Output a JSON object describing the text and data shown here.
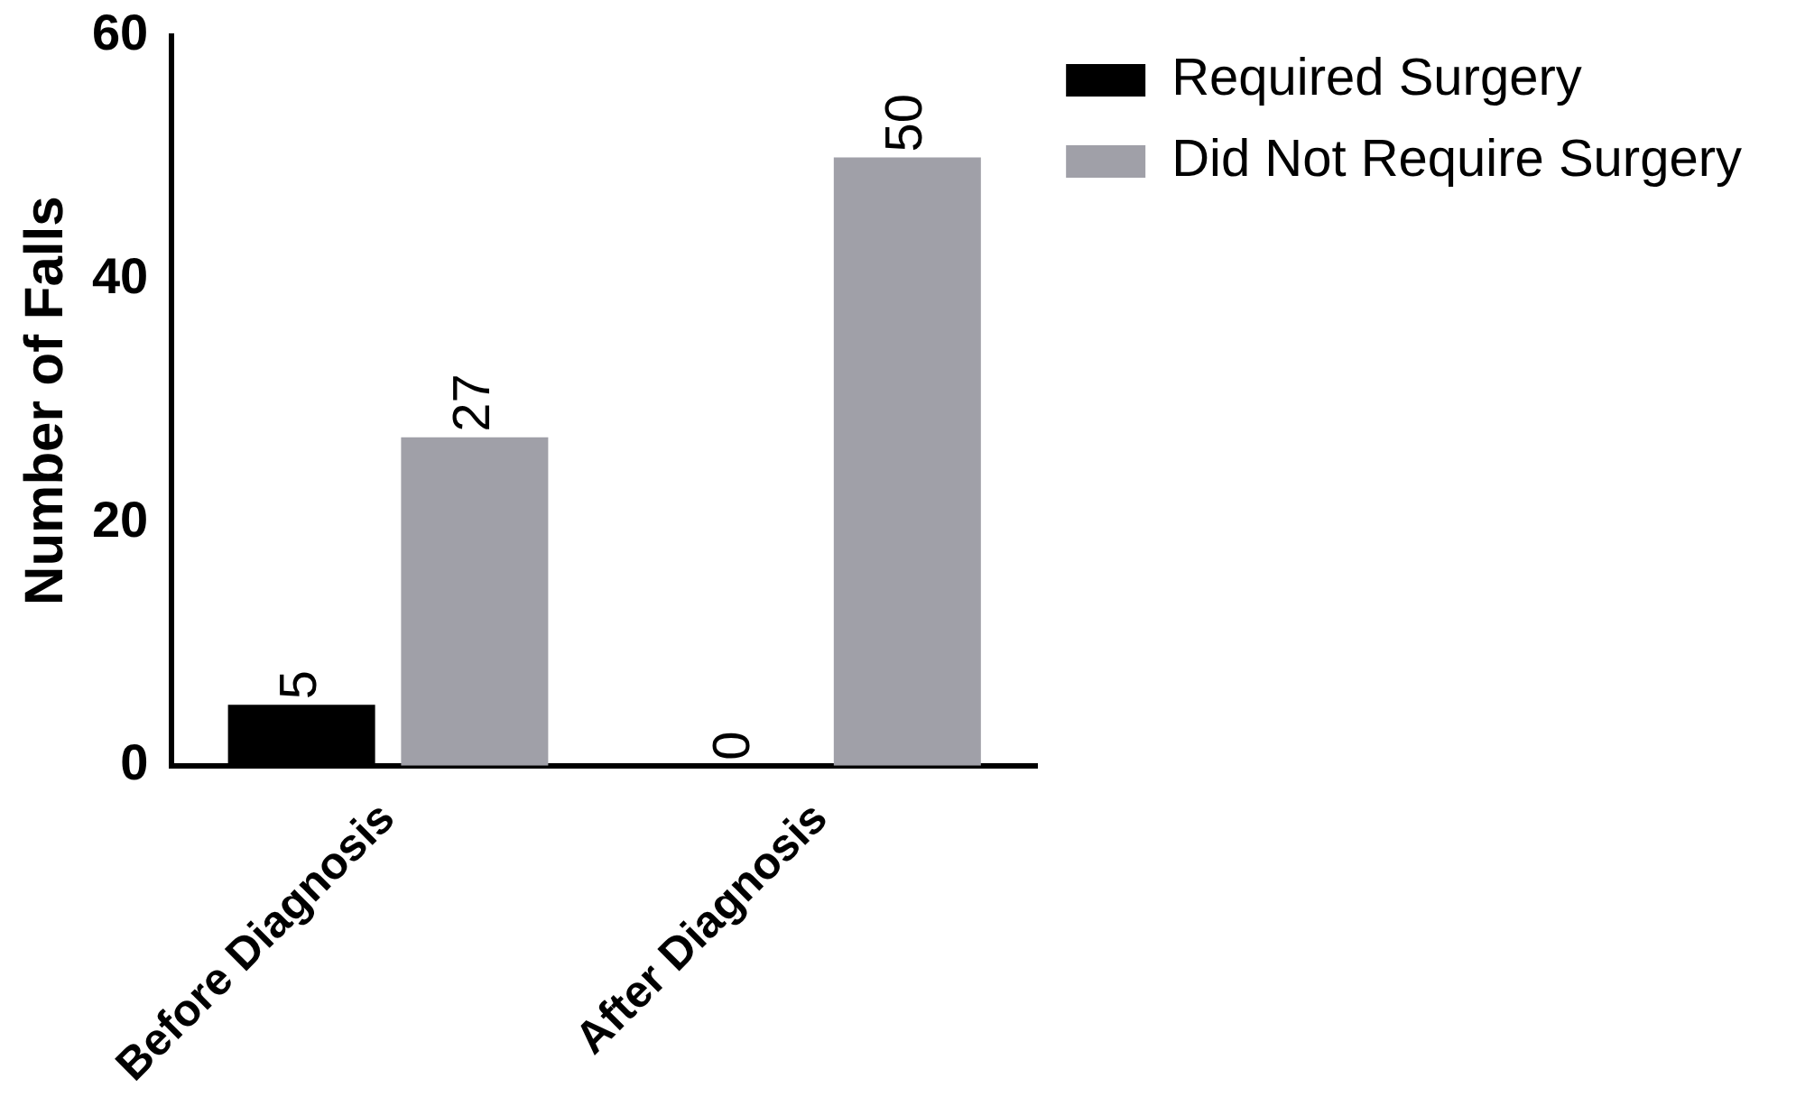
{
  "chart_data": {
    "type": "bar",
    "ylabel": "Number of Falls",
    "categories": [
      "Before Diagnosis",
      "After Diagnosis"
    ],
    "series": [
      {
        "name": "Required Surgery",
        "color": "#000000",
        "values": [
          5,
          0
        ]
      },
      {
        "name": "Did Not Require Surgery",
        "color": "#a0a0a8",
        "values": [
          27,
          50
        ]
      }
    ],
    "ylim": [
      0,
      60
    ],
    "yticks": [
      0,
      20,
      40,
      60
    ],
    "legend": "top right",
    "data_labels": true
  }
}
